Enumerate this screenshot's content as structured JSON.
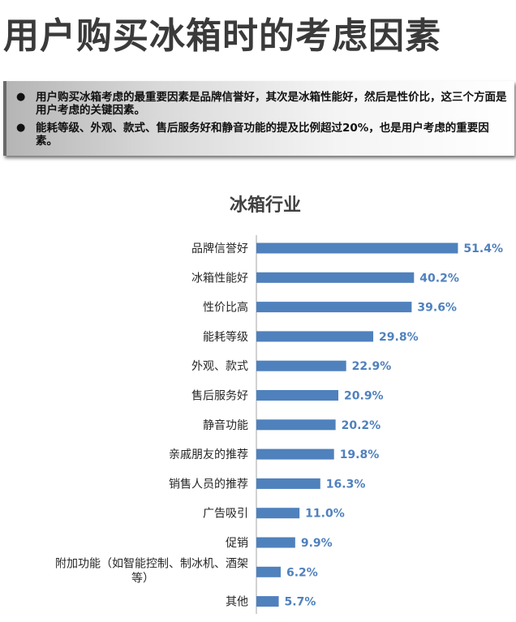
{
  "page": {
    "title": "用户购买冰箱时的考虑因素",
    "bullets": [
      "用户购买冰箱考虑的最重要因素是品牌信誉好，其次是冰箱性能好，然后是性价比，这三个方面是用户考虑的关键因素。",
      "能耗等级、外观、款式、售后服务好和静音功能的提及比例超过20%，也是用户考虑的重要因素。"
    ]
  },
  "chart_data": {
    "type": "bar",
    "orientation": "horizontal",
    "title": "冰箱行业",
    "categories": [
      "品牌信誉好",
      "冰箱性能好",
      "性价比高",
      "能耗等级",
      "外观、款式",
      "售后服务好",
      "静音功能",
      "亲戚朋友的推荐",
      "销售人员的推荐",
      "广告吸引",
      "促销",
      "附加功能（如智能控制、制冰机、酒架等）",
      "其他"
    ],
    "values": [
      51.4,
      40.2,
      39.6,
      29.8,
      22.9,
      20.9,
      20.2,
      19.8,
      16.3,
      11.0,
      9.9,
      6.2,
      5.7
    ],
    "data_labels": [
      "51.4%",
      "40.2%",
      "39.6%",
      "29.8%",
      "22.9%",
      "20.9%",
      "20.2%",
      "19.8%",
      "16.3%",
      "11.0%",
      "9.9%",
      "6.2%",
      "5.7%"
    ],
    "xlim": [
      0,
      60
    ],
    "grid": false,
    "bar_color": "#4f81bd",
    "label_color": "#4f81bd"
  }
}
